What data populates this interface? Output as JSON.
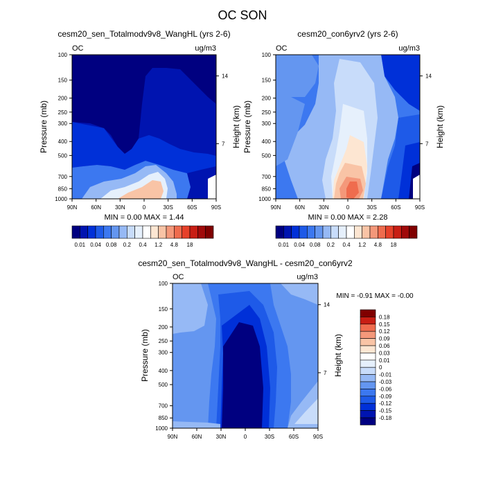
{
  "figure_title": "OC SON",
  "palette_colors": [
    "#000080",
    "#0014b0",
    "#0030d8",
    "#1e5ae8",
    "#3c78f0",
    "#6496f0",
    "#96b9f5",
    "#c8dcfa",
    "#e6f0fc",
    "#ffffff",
    "#fde6d2",
    "#f9c4a6",
    "#f4987a",
    "#ef6c4e",
    "#e6412a",
    "#c81e14",
    "#a00a0a",
    "#800000"
  ],
  "colorbar_tick_labels": [
    "0.01",
    "0.04",
    "0.08",
    "0.2",
    "0.4",
    "1.2",
    "4.8",
    "18"
  ],
  "diff_colorbar_labels": [
    "0.18",
    "0.15",
    "0.12",
    "0.09",
    "0.06",
    "0.03",
    "0.01",
    "0",
    "-0.01",
    "-0.03",
    "-0.06",
    "-0.09",
    "-0.12",
    "-0.15",
    "-0.18"
  ],
  "chart_data": [
    {
      "type": "heatmap",
      "title": "cesm20_sen_Totalmodv9v8_WangHL (yrs 2-6)",
      "left_label": "OC",
      "units": "ug/m3",
      "xlabel": "",
      "ylabel": "Pressure (mb)",
      "ylabel_right": "Height (km)",
      "x_ticks": [
        "90N",
        "60N",
        "30N",
        "0",
        "30S",
        "60S",
        "90S"
      ],
      "y_ticks": [
        "100",
        "150",
        "200",
        "250",
        "300",
        "400",
        "500",
        "700",
        "850",
        "1000"
      ],
      "y_right_ticks": [
        "14",
        "7"
      ],
      "stats": "MIN =  0.00  MAX =  1.44",
      "min": 0.0,
      "max": 1.44
    },
    {
      "type": "heatmap",
      "title": "cesm20_con6yrv2 (yrs 2-6)",
      "left_label": "OC",
      "units": "ug/m3",
      "xlabel": "",
      "ylabel": "Pressure (mb)",
      "ylabel_right": "Height (km)",
      "x_ticks": [
        "90N",
        "60N",
        "30N",
        "0",
        "30S",
        "60S",
        "90S"
      ],
      "y_ticks": [
        "100",
        "150",
        "200",
        "250",
        "300",
        "400",
        "500",
        "700",
        "850",
        "1000"
      ],
      "y_right_ticks": [
        "14",
        "7"
      ],
      "stats": "MIN =  0.00  MAX =  2.28",
      "min": 0.0,
      "max": 2.28
    },
    {
      "type": "heatmap",
      "title": "cesm20_sen_Totalmodv9v8_WangHL - cesm20_con6yrv2",
      "left_label": "OC",
      "units": "ug/m3",
      "xlabel": "",
      "ylabel": "Pressure (mb)",
      "ylabel_right": "Height (km)",
      "x_ticks": [
        "90N",
        "60N",
        "30N",
        "0",
        "30S",
        "60S",
        "90S"
      ],
      "y_ticks": [
        "100",
        "150",
        "200",
        "250",
        "300",
        "400",
        "500",
        "700",
        "850",
        "1000"
      ],
      "y_right_ticks": [
        "14",
        "7"
      ],
      "stats": "MIN =  -0.91  MAX =  -0.00",
      "min": -0.91,
      "max": -0.0
    }
  ]
}
